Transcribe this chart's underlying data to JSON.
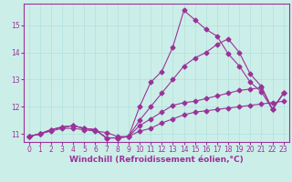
{
  "background_color": "#cceee8",
  "line_color": "#993399",
  "marker": "D",
  "markersize": 2.5,
  "linewidth": 0.8,
  "xlabel": "Windchill (Refroidissement éolien,°C)",
  "xlabel_fontsize": 6.5,
  "tick_fontsize": 5.5,
  "xlim": [
    -0.5,
    23.5
  ],
  "ylim": [
    10.7,
    15.8
  ],
  "yticks": [
    11,
    12,
    13,
    14,
    15
  ],
  "xticks": [
    0,
    1,
    2,
    3,
    4,
    5,
    6,
    7,
    8,
    9,
    10,
    11,
    12,
    13,
    14,
    15,
    16,
    17,
    18,
    19,
    20,
    21,
    22,
    23
  ],
  "series": [
    {
      "x": [
        0,
        1,
        2,
        3,
        4,
        5,
        6,
        7,
        8,
        9,
        10,
        11,
        12,
        13,
        14,
        15,
        16,
        17,
        18,
        19,
        20,
        21,
        22,
        23
      ],
      "y": [
        10.9,
        11.0,
        11.1,
        11.2,
        11.2,
        11.15,
        11.1,
        11.05,
        10.9,
        10.9,
        11.1,
        11.2,
        11.4,
        11.55,
        11.7,
        11.8,
        11.85,
        11.9,
        11.95,
        12.0,
        12.05,
        12.1,
        12.15,
        12.2
      ]
    },
    {
      "x": [
        0,
        1,
        2,
        3,
        4,
        5,
        6,
        7,
        8,
        9,
        10,
        11,
        12,
        13,
        14,
        15,
        16,
        17,
        18,
        19,
        20,
        21,
        22,
        23
      ],
      "y": [
        10.9,
        11.0,
        11.15,
        11.25,
        11.3,
        11.2,
        11.15,
        10.85,
        10.85,
        10.9,
        11.3,
        11.55,
        11.8,
        12.05,
        12.15,
        12.2,
        12.3,
        12.4,
        12.5,
        12.6,
        12.65,
        12.7,
        11.9,
        12.5
      ]
    },
    {
      "x": [
        0,
        1,
        2,
        3,
        4,
        5,
        6,
        7,
        8,
        9,
        10,
        11,
        12,
        13,
        14,
        15,
        16,
        17,
        18,
        19,
        20,
        21,
        22,
        23
      ],
      "y": [
        10.9,
        11.0,
        11.15,
        11.25,
        11.3,
        11.2,
        11.15,
        10.85,
        10.85,
        10.9,
        11.5,
        12.0,
        12.5,
        13.0,
        13.5,
        13.8,
        14.0,
        14.3,
        14.5,
        14.0,
        13.2,
        12.75,
        11.9,
        12.5
      ]
    },
    {
      "x": [
        0,
        1,
        2,
        3,
        4,
        5,
        6,
        7,
        8,
        9,
        10,
        11,
        12,
        13,
        14,
        15,
        16,
        17,
        18,
        19,
        20,
        21,
        22,
        23
      ],
      "y": [
        10.9,
        11.0,
        11.15,
        11.25,
        11.3,
        11.2,
        11.15,
        10.85,
        10.85,
        10.9,
        12.0,
        12.9,
        13.3,
        14.2,
        15.55,
        15.2,
        14.85,
        14.6,
        13.95,
        13.5,
        12.9,
        12.55,
        11.9,
        12.5
      ]
    }
  ]
}
